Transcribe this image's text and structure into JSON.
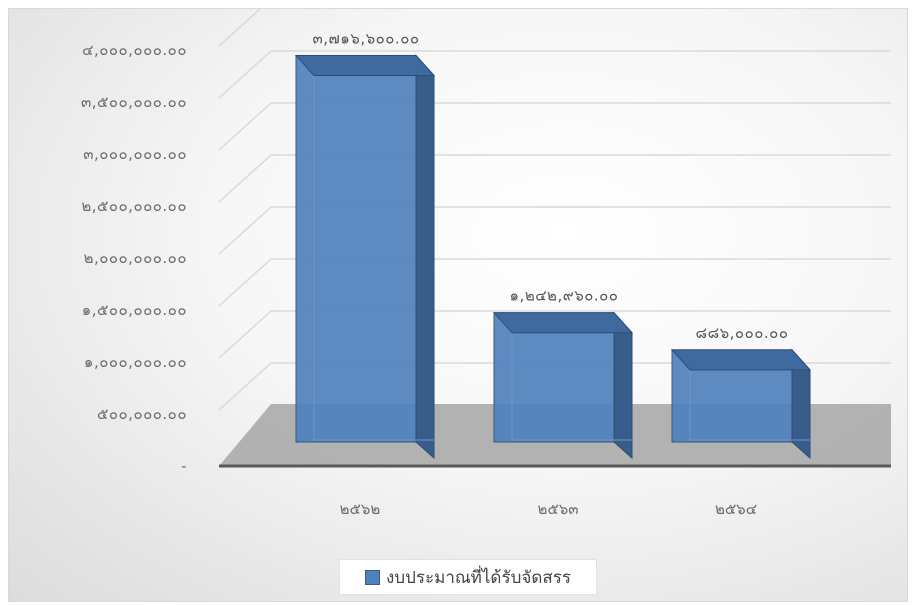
{
  "chart_data": {
    "type": "bar",
    "style": "3d-column",
    "title": "",
    "xlabel": "",
    "ylabel": "",
    "categories": [
      "๒๕๖๒",
      "๒๕๖๓",
      "๒๕๖๔"
    ],
    "series": [
      {
        "name": "งบประมาณที่ได้รับจัดสรร",
        "values": [
          3716600,
          1242960,
          886000
        ],
        "value_labels": [
          "๓,๗๑๖,๖๐๐.๐๐",
          "๑,๒๔๒,๙๖๐.๐๐",
          "๘๘๖,๐๐๐.๐๐"
        ],
        "color": "#4f81bd"
      }
    ],
    "ylim": [
      0,
      4000000
    ],
    "yticks": [
      0,
      500000,
      1000000,
      1500000,
      2000000,
      2500000,
      3000000,
      3500000,
      4000000
    ],
    "ytick_labels": [
      "-",
      "๕๐๐,๐๐๐.๐๐",
      "๑,๐๐๐,๐๐๐.๐๐",
      "๑,๕๐๐,๐๐๐.๐๐",
      "๒,๐๐๐,๐๐๐.๐๐",
      "๒,๕๐๐,๐๐๐.๐๐",
      "๓,๐๐๐,๐๐๐.๐๐",
      "๓,๕๐๐,๐๐๐.๐๐",
      "๔,๐๐๐,๐๐๐.๐๐"
    ],
    "grid": true,
    "legend_position": "bottom"
  },
  "legend": {
    "label": "งบประมาณที่ได้รับจัดสรร"
  },
  "colors": {
    "bar_front": "#4f81bd",
    "bar_side": "#385d8a",
    "bar_top": "#3f6aa0",
    "floor": "#a6a6a6",
    "axis": "#595959",
    "grid": "#d9d9d9"
  }
}
